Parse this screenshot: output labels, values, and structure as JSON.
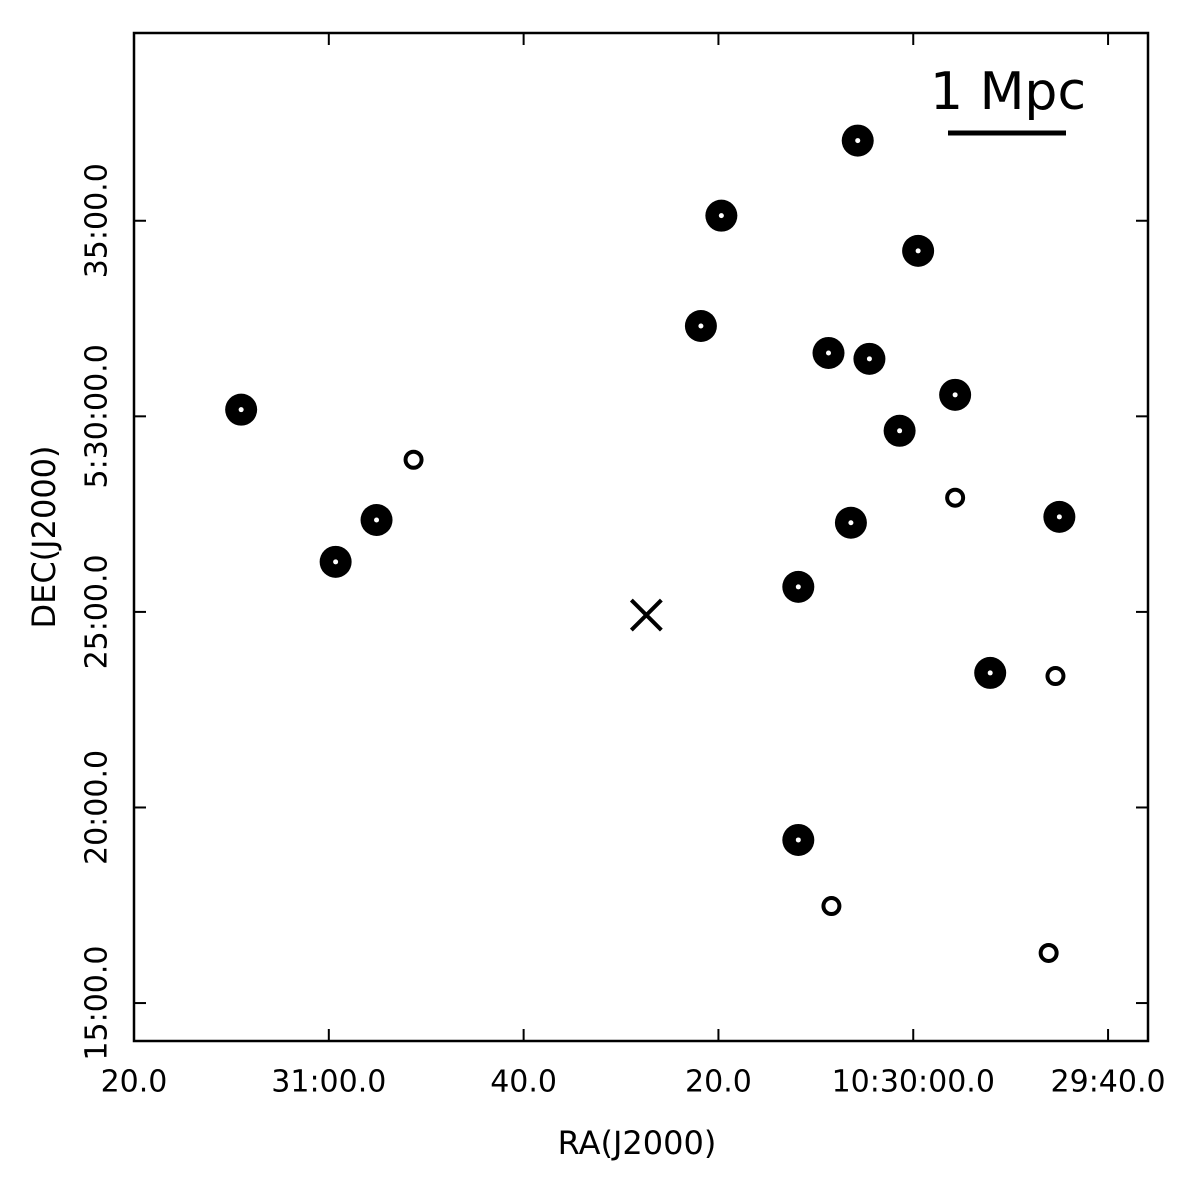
{
  "chart_data": {
    "type": "scatter",
    "x_label": "RA(J2000)",
    "y_label": "DEC(J2000)",
    "annotation": "1 Mpc",
    "xlim": [
      1880,
      1775.9
    ],
    "ylim": [
      14.03,
      39.8
    ],
    "xticks": [
      {
        "value": 1880,
        "label": "20.0"
      },
      {
        "value": 1860,
        "label": "31:00.0"
      },
      {
        "value": 1840,
        "label": "40.0"
      },
      {
        "value": 1820,
        "label": "20.0"
      },
      {
        "value": 1800,
        "label": "10:30:00.0"
      },
      {
        "value": 1780,
        "label": "29:40.0"
      }
    ],
    "yticks": [
      {
        "value": 15,
        "label": "15:00.0"
      },
      {
        "value": 20,
        "label": "20:00.0"
      },
      {
        "value": 25,
        "label": "25:00.0"
      },
      {
        "value": 30,
        "label": "5:30:00.0"
      },
      {
        "value": 35,
        "label": "35:00.0"
      }
    ],
    "series": [
      {
        "marker": "filled",
        "color": "#000000",
        "x": [
          1869.0,
          1859.3,
          1855.1,
          1821.8,
          1819.7,
          1811.8,
          1811.8,
          1808.7,
          1806.4,
          1805.7,
          1804.5,
          1801.4,
          1799.5,
          1795.7,
          1792.1,
          1785.0
        ],
        "y": [
          30.17,
          26.28,
          27.35,
          32.31,
          35.13,
          25.64,
          19.17,
          31.62,
          27.28,
          37.05,
          31.47,
          29.63,
          34.23,
          30.55,
          23.44,
          27.43
        ]
      },
      {
        "marker": "open",
        "color": "#000000",
        "x": [
          1851.3,
          1795.7,
          1785.4,
          1808.4,
          1786.1
        ],
        "y": [
          28.89,
          27.92,
          23.36,
          17.48,
          16.28
        ]
      },
      {
        "marker": "cross",
        "color": "#000000",
        "x": [
          1827.4
        ],
        "y": [
          24.92
        ]
      }
    ]
  }
}
